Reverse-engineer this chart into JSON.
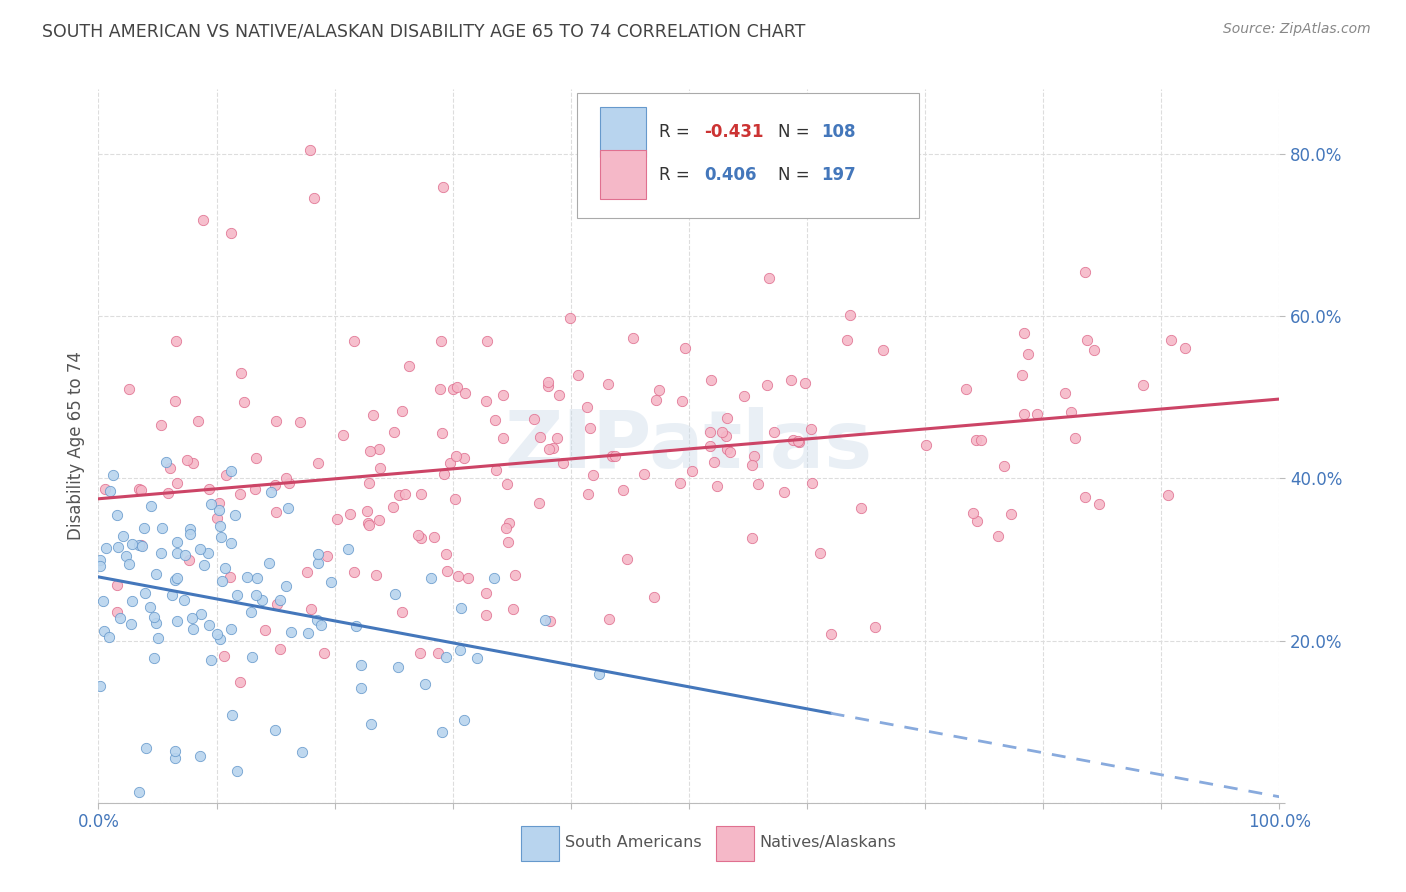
{
  "title": "SOUTH AMERICAN VS NATIVE/ALASKAN DISABILITY AGE 65 TO 74 CORRELATION CHART",
  "source": "Source: ZipAtlas.com",
  "ylabel": "Disability Age 65 to 74",
  "blue_label": "South Americans",
  "pink_label": "Natives/Alaskans",
  "blue_R": -0.431,
  "blue_N": 108,
  "pink_R": 0.406,
  "pink_N": 197,
  "x_min": 0.0,
  "x_max": 1.0,
  "y_min": 0.0,
  "y_max": 0.88,
  "yticks": [
    0.0,
    0.2,
    0.4,
    0.6,
    0.8
  ],
  "ytick_labels": [
    "",
    "20.0%",
    "40.0%",
    "60.0%",
    "80.0%"
  ],
  "xticks": [
    0.0,
    0.1,
    0.2,
    0.3,
    0.4,
    0.5,
    0.6,
    0.7,
    0.8,
    0.9,
    1.0
  ],
  "xtick_labels": [
    "0.0%",
    "",
    "",
    "",
    "",
    "",
    "",
    "",
    "",
    "",
    "100.0%"
  ],
  "blue_scatter_color": "#b8d4ee",
  "blue_edge_color": "#6699cc",
  "pink_scatter_color": "#f5b8c8",
  "pink_edge_color": "#e07090",
  "blue_line_color": "#4477bb",
  "blue_dash_color": "#88aadd",
  "pink_line_color": "#cc4466",
  "grid_color": "#dddddd",
  "title_color": "#444444",
  "axis_tick_color": "#4477bb",
  "legend_text_color": "#333333",
  "legend_N_color": "#4477bb",
  "legend_R_neg_color": "#cc3333",
  "legend_R_pos_color": "#4477bb",
  "background_color": "#ffffff",
  "watermark_color": "#c8d8e8",
  "seed_blue": 77,
  "seed_pink": 55
}
